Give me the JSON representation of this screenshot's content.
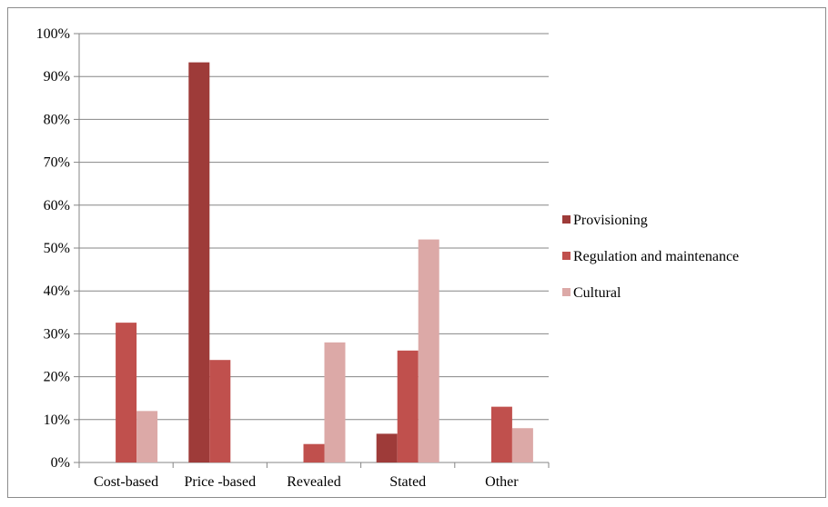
{
  "chart_data": {
    "type": "bar",
    "categories": [
      "Cost-based",
      "Price -based",
      "Revealed",
      "Stated",
      "Other"
    ],
    "series": [
      {
        "name": "Provisioning",
        "color": "#9e3b39",
        "values": [
          0,
          93.3,
          0,
          6.7,
          0
        ]
      },
      {
        "name": "Regulation and maintenance",
        "color": "#c0504d",
        "values": [
          32.6,
          23.9,
          4.3,
          26.1,
          13.0
        ]
      },
      {
        "name": "Cultural",
        "color": "#dca9a7",
        "values": [
          12.0,
          0,
          28.0,
          52.0,
          8.0
        ]
      }
    ],
    "y_ticks": [
      "0%",
      "10%",
      "20%",
      "30%",
      "40%",
      "50%",
      "60%",
      "70%",
      "80%",
      "90%",
      "100%"
    ],
    "ylim": [
      0,
      100
    ],
    "grid": true,
    "legend_position": "right"
  }
}
